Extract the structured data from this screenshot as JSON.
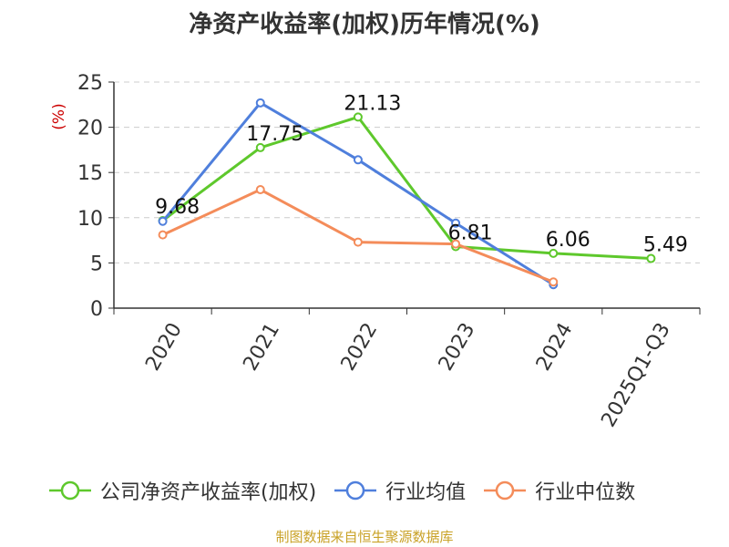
{
  "chart_data": {
    "type": "line",
    "title": "净资产收益率(加权)历年情况(%)",
    "ylabel": "(%)",
    "xlabel": "",
    "categories": [
      "2020",
      "2021",
      "2022",
      "2023",
      "2024",
      "2025Q1-Q3"
    ],
    "ylim": [
      0,
      25
    ],
    "yticks": [
      "0",
      "5",
      "10",
      "15",
      "20",
      "25"
    ],
    "grid": true,
    "legend_position": "bottom",
    "series": [
      {
        "name": "公司净资产收益率(加权)",
        "color": "#5ec82c",
        "values": [
          9.68,
          17.75,
          21.13,
          6.81,
          6.06,
          5.49
        ],
        "labels": [
          "9.68",
          "17.75",
          "21.13",
          "6.81",
          "6.06",
          "5.49"
        ]
      },
      {
        "name": "行业均值",
        "color": "#4f7fdc",
        "values": [
          9.6,
          22.7,
          16.4,
          9.4,
          2.6,
          null
        ]
      },
      {
        "name": "行业中位数",
        "color": "#f48c5a",
        "values": [
          8.1,
          13.1,
          7.3,
          7.1,
          2.9,
          null
        ]
      }
    ]
  },
  "footer": {
    "source": "制图数据来自恒生聚源数据库"
  }
}
